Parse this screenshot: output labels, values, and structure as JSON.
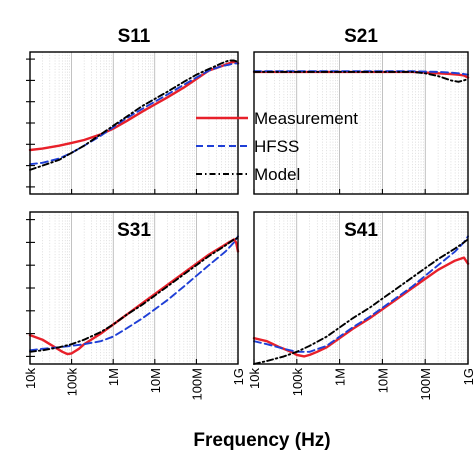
{
  "chart_data": {
    "type": "line",
    "xlabel": "Frequency (Hz)",
    "xscale": "log",
    "xlim": [
      10000,
      1000000000
    ],
    "x_tick_values": [
      10000,
      100000,
      1000000,
      10000000,
      100000000,
      1000000000
    ],
    "x_tick_labels": [
      "10k",
      "100k",
      "1M",
      "10M",
      "100M",
      "1G"
    ],
    "yscale": "normalized",
    "ylim": [
      0,
      1
    ],
    "y_tick_values": [
      0.05,
      0.2,
      0.35,
      0.5,
      0.65,
      0.8,
      0.95
    ],
    "grid": "major-solid-minor-dotted-vertical",
    "legend": {
      "placement": "center",
      "entries": [
        {
          "name": "Measurement",
          "color": "#e8202a",
          "style": "solid"
        },
        {
          "name": "HFSS",
          "color": "#1f3fd6",
          "style": "dashed"
        },
        {
          "name": "Model",
          "color": "#000000",
          "style": "dashdot"
        }
      ]
    },
    "panels": [
      {
        "title": "S11",
        "series": [
          {
            "name": "Measurement",
            "x": [
              10000,
              20000,
              50000,
              100000,
              200000,
              500000,
              1000000,
              2000000,
              5000000,
              10000000,
              20000000,
              50000000,
              100000000,
              200000000,
              400000000,
              600000000,
              800000000,
              1000000000
            ],
            "y": [
              0.31,
              0.32,
              0.34,
              0.36,
              0.38,
              0.42,
              0.46,
              0.51,
              0.58,
              0.63,
              0.68,
              0.75,
              0.81,
              0.87,
              0.9,
              0.92,
              0.93,
              0.92
            ]
          },
          {
            "name": "HFSS",
            "x": [
              10000,
              20000,
              50000,
              100000,
              200000,
              500000,
              1000000,
              2000000,
              5000000,
              10000000,
              20000000,
              50000000,
              100000000,
              200000000,
              400000000,
              600000000,
              800000000,
              1000000000
            ],
            "y": [
              0.21,
              0.22,
              0.25,
              0.29,
              0.34,
              0.41,
              0.47,
              0.53,
              0.6,
              0.65,
              0.7,
              0.77,
              0.82,
              0.87,
              0.9,
              0.91,
              0.92,
              0.92
            ]
          },
          {
            "name": "Model",
            "x": [
              10000,
              20000,
              50000,
              100000,
              200000,
              500000,
              1000000,
              2000000,
              5000000,
              10000000,
              20000000,
              50000000,
              100000000,
              200000000,
              400000000,
              600000000,
              800000000,
              1000000000
            ],
            "y": [
              0.17,
              0.2,
              0.24,
              0.29,
              0.34,
              0.42,
              0.48,
              0.54,
              0.62,
              0.67,
              0.72,
              0.79,
              0.84,
              0.88,
              0.92,
              0.94,
              0.94,
              0.93
            ]
          }
        ]
      },
      {
        "title": "S21",
        "series": [
          {
            "name": "Measurement",
            "x": [
              10000,
              100000,
              1000000,
              10000000,
              50000000,
              100000000,
              200000000,
              400000000,
              600000000,
              800000000,
              1000000000
            ],
            "y": [
              0.86,
              0.86,
              0.86,
              0.86,
              0.86,
              0.855,
              0.85,
              0.845,
              0.84,
              0.835,
              0.82
            ]
          },
          {
            "name": "HFSS",
            "x": [
              10000,
              100000,
              1000000,
              10000000,
              50000000,
              100000000,
              200000000,
              400000000,
              600000000,
              800000000,
              1000000000
            ],
            "y": [
              0.865,
              0.865,
              0.865,
              0.865,
              0.865,
              0.862,
              0.86,
              0.855,
              0.85,
              0.845,
              0.84
            ]
          },
          {
            "name": "Model",
            "x": [
              10000,
              100000,
              1000000,
              10000000,
              50000000,
              100000000,
              200000000,
              400000000,
              600000000,
              800000000,
              1000000000
            ],
            "y": [
              0.86,
              0.86,
              0.86,
              0.86,
              0.86,
              0.85,
              0.83,
              0.8,
              0.79,
              0.8,
              0.81
            ]
          }
        ]
      },
      {
        "title": "S31",
        "series": [
          {
            "name": "Measurement",
            "x": [
              10000,
              20000,
              40000,
              60000,
              80000,
              100000,
              150000,
              200000,
              500000,
              1000000,
              2000000,
              5000000,
              10000000,
              20000000,
              50000000,
              100000000,
              200000000,
              400000000,
              600000000,
              800000000,
              900000000,
              1000000000
            ],
            "y": [
              0.19,
              0.16,
              0.11,
              0.08,
              0.065,
              0.07,
              0.1,
              0.13,
              0.2,
              0.26,
              0.32,
              0.4,
              0.46,
              0.52,
              0.6,
              0.66,
              0.72,
              0.77,
              0.8,
              0.82,
              0.8,
              0.74
            ]
          },
          {
            "name": "HFSS",
            "x": [
              10000,
              20000,
              50000,
              100000,
              200000,
              500000,
              1000000,
              2000000,
              5000000,
              10000000,
              20000000,
              50000000,
              100000000,
              200000000,
              500000000,
              800000000,
              1000000000
            ],
            "y": [
              0.09,
              0.1,
              0.11,
              0.12,
              0.13,
              0.15,
              0.18,
              0.23,
              0.3,
              0.36,
              0.42,
              0.51,
              0.58,
              0.65,
              0.74,
              0.8,
              0.84
            ]
          },
          {
            "name": "Model",
            "x": [
              10000,
              20000,
              50000,
              100000,
              200000,
              500000,
              1000000,
              2000000,
              5000000,
              10000000,
              20000000,
              50000000,
              100000000,
              200000000,
              500000000,
              800000000,
              1000000000
            ],
            "y": [
              0.08,
              0.09,
              0.11,
              0.13,
              0.16,
              0.21,
              0.26,
              0.32,
              0.39,
              0.45,
              0.51,
              0.59,
              0.65,
              0.71,
              0.78,
              0.82,
              0.83
            ]
          }
        ]
      },
      {
        "title": "S41",
        "series": [
          {
            "name": "Measurement",
            "x": [
              10000,
              20000,
              40000,
              60000,
              80000,
              100000,
              150000,
              200000,
              300000,
              500000,
              1000000,
              2000000,
              5000000,
              10000000,
              20000000,
              50000000,
              100000000,
              200000000,
              500000000,
              800000000,
              1000000000
            ],
            "y": [
              0.17,
              0.15,
              0.11,
              0.09,
              0.075,
              0.06,
              0.05,
              0.06,
              0.08,
              0.11,
              0.17,
              0.23,
              0.3,
              0.36,
              0.42,
              0.5,
              0.56,
              0.62,
              0.68,
              0.7,
              0.66
            ]
          },
          {
            "name": "HFSS",
            "x": [
              10000,
              20000,
              50000,
              100000,
              200000,
              500000,
              1000000,
              2000000,
              5000000,
              10000000,
              20000000,
              50000000,
              100000000,
              200000000,
              500000000,
              800000000,
              1000000000
            ],
            "y": [
              0.15,
              0.13,
              0.1,
              0.08,
              0.08,
              0.12,
              0.18,
              0.24,
              0.31,
              0.37,
              0.43,
              0.51,
              0.58,
              0.65,
              0.74,
              0.8,
              0.84
            ]
          },
          {
            "name": "Model",
            "x": [
              10000,
              20000,
              50000,
              100000,
              200000,
              500000,
              1000000,
              2000000,
              5000000,
              10000000,
              20000000,
              50000000,
              100000000,
              200000000,
              500000000,
              800000000,
              1000000000
            ],
            "y": [
              0.0,
              0.02,
              0.05,
              0.08,
              0.12,
              0.18,
              0.24,
              0.3,
              0.37,
              0.43,
              0.49,
              0.57,
              0.63,
              0.69,
              0.76,
              0.8,
              0.82
            ]
          }
        ]
      }
    ]
  }
}
